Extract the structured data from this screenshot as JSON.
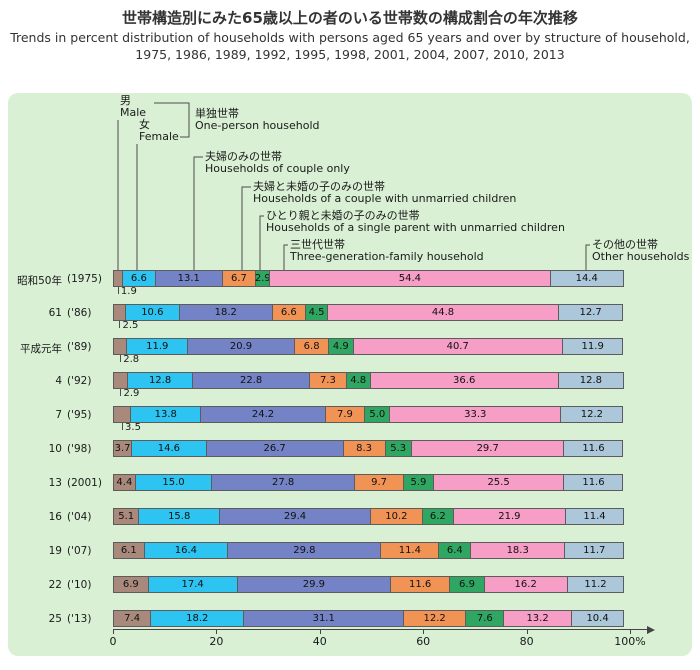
{
  "header": {
    "title_ja": "世帯構造別にみた65歳以上の者のいる世帯数の構成割合の年次推移",
    "subtitle_en_line1": "Trends in percent distribution of households with persons aged 65 years and over by structure of household,",
    "subtitle_en_line2": "1975, 1986, 1989, 1992, 1995, 1998, 2001, 2004, 2007, 2010, 2013"
  },
  "legend": {
    "male": {
      "ja": "男",
      "en": "Male"
    },
    "female": {
      "ja": "女",
      "en": "Female"
    },
    "one_person": {
      "ja": "単独世帯",
      "en": "One-person household"
    },
    "couple_only": {
      "ja": "夫婦のみの世帯",
      "en": "Households of couple only"
    },
    "couple_with_children": {
      "ja": "夫婦と未婚の子のみの世帯",
      "en": "Households of a couple with unmarried children"
    },
    "single_parent_with_children": {
      "ja": "ひとり親と未婚の子のみの世帯",
      "en": "Households of a single parent with unmarried children"
    },
    "three_generation": {
      "ja": "三世代世帯",
      "en": "Three-generation-family household"
    },
    "other": {
      "ja": "その他の世帯",
      "en": "Other households"
    }
  },
  "chart_data": {
    "type": "bar",
    "variant": "horizontal-stacked",
    "unit": "percent",
    "title": "世帯構造別にみた65歳以上の者のいる世帯数の構成割合の年次推移",
    "x_axis": {
      "range": [
        0,
        100
      ],
      "ticks": [
        "0",
        "20",
        "40",
        "60",
        "80",
        "100%"
      ]
    },
    "segments": [
      {
        "key": "male",
        "name_en": "Male (one-person household)",
        "color": "#a8897b"
      },
      {
        "key": "female",
        "name_en": "Female (one-person household)",
        "color": "#2ec4f2"
      },
      {
        "key": "couple-only",
        "name_en": "Households of couple only",
        "color": "#7383c5"
      },
      {
        "key": "couple-with-children",
        "name_en": "Households of a couple with unmarried children",
        "color": "#f29356"
      },
      {
        "key": "single-parent-with-children",
        "name_en": "Households of a single parent with unmarried children",
        "color": "#2fa763"
      },
      {
        "key": "three-generation",
        "name_en": "Three-generation-family household",
        "color": "#f79ec6"
      },
      {
        "key": "other",
        "name_en": "Other households",
        "color": "#abc7d9"
      }
    ],
    "rows": [
      {
        "era": "昭和50年",
        "year": "(1975)",
        "values": [
          1.9,
          6.6,
          13.1,
          6.7,
          2.9,
          54.4,
          14.4
        ],
        "male_below": true
      },
      {
        "era": "61",
        "year": "('86)",
        "values": [
          2.5,
          10.6,
          18.2,
          6.6,
          4.5,
          44.8,
          12.7
        ],
        "male_below": true
      },
      {
        "era": "平成元年",
        "year": "('89)",
        "values": [
          2.8,
          11.9,
          20.9,
          6.8,
          4.9,
          40.7,
          11.9
        ],
        "male_below": true
      },
      {
        "era": "4",
        "year": "('92)",
        "values": [
          2.9,
          12.8,
          22.8,
          7.3,
          4.8,
          36.6,
          12.8
        ],
        "male_below": true
      },
      {
        "era": "7",
        "year": "('95)",
        "values": [
          3.5,
          13.8,
          24.2,
          7.9,
          5.0,
          33.3,
          12.2
        ],
        "male_below": true
      },
      {
        "era": "10",
        "year": "('98)",
        "values": [
          3.7,
          14.6,
          26.7,
          8.3,
          5.3,
          29.7,
          11.6
        ],
        "male_below": false
      },
      {
        "era": "13",
        "year": "(2001)",
        "values": [
          4.4,
          15.0,
          27.8,
          9.7,
          5.9,
          25.5,
          11.6
        ],
        "male_below": false
      },
      {
        "era": "16",
        "year": "('04)",
        "values": [
          5.1,
          15.8,
          29.4,
          10.2,
          6.2,
          21.9,
          11.4
        ],
        "male_below": false
      },
      {
        "era": "19",
        "year": "('07)",
        "values": [
          6.1,
          16.4,
          29.8,
          11.4,
          6.4,
          18.3,
          11.7
        ],
        "male_below": false
      },
      {
        "era": "22",
        "year": "('10)",
        "values": [
          6.9,
          17.4,
          29.9,
          11.6,
          6.9,
          16.2,
          11.2
        ],
        "male_below": false
      },
      {
        "era": "25",
        "year": "('13)",
        "values": [
          7.4,
          18.2,
          31.1,
          12.2,
          7.6,
          13.2,
          10.4
        ],
        "male_below": false
      }
    ]
  }
}
